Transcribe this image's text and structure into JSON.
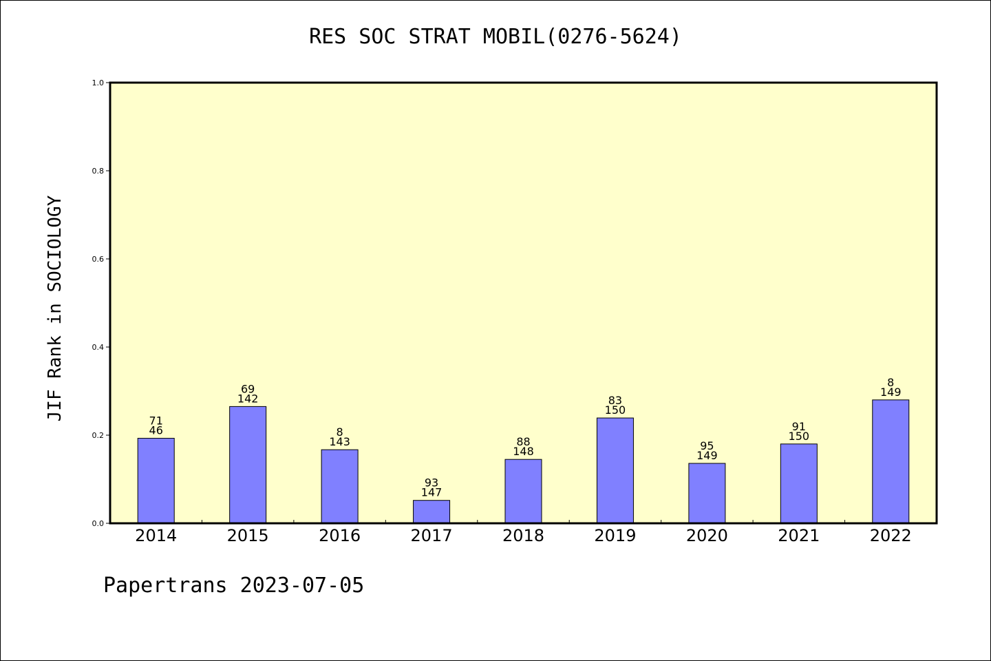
{
  "title": "RES SOC STRAT MOBIL(0276-5624)",
  "footer": "Papertrans 2023-07-05",
  "colors": {
    "plot_background": "#ffffcc",
    "bar_fill": "#8080ff",
    "bar_stroke": "#000000"
  },
  "chart_data": {
    "type": "bar",
    "title": "RES SOC STRAT MOBIL(0276-5624)",
    "xlabel": "",
    "ylabel": "JIF Rank in SOCIOLOGY",
    "ylim": [
      0,
      1.0
    ],
    "yticks": [
      "0.0",
      "0.2",
      "0.4",
      "0.6",
      "0.8",
      "1.0"
    ],
    "grid": false,
    "categories": [
      "2014",
      "2015",
      "2016",
      "2017",
      "2018",
      "2019",
      "2020",
      "2021",
      "2022"
    ],
    "values": [
      0.193,
      0.265,
      0.167,
      0.052,
      0.145,
      0.239,
      0.136,
      0.18,
      0.28
    ],
    "bar_labels_top": [
      "71",
      "69",
      "8",
      "93",
      "88",
      "83",
      "95",
      "91",
      "8"
    ],
    "bar_labels_bottom": [
      "46",
      "142",
      "143",
      "147",
      "148",
      "150",
      "149",
      "150",
      "149"
    ]
  }
}
